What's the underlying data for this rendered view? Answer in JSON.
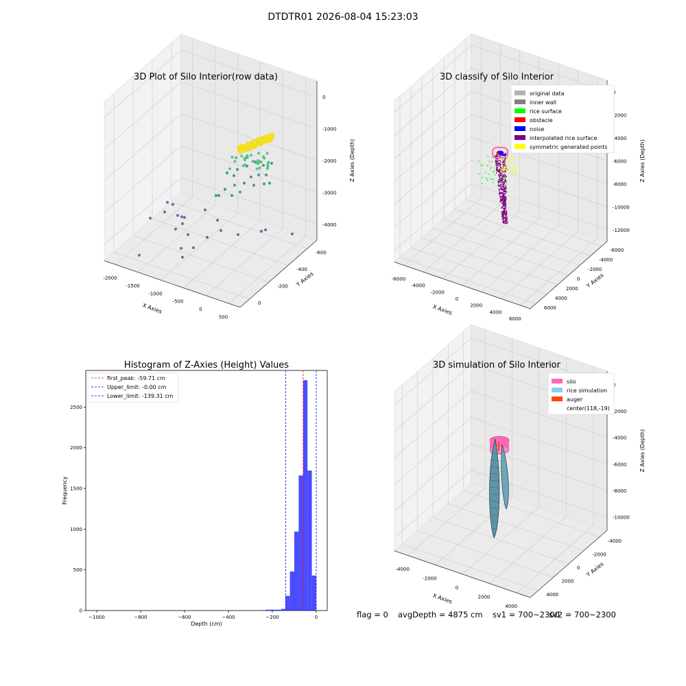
{
  "figure": {
    "suptitle": "DTDTR01 2026-08-04 15:23:03",
    "footer": {
      "flag": "flag = 0",
      "avg_depth": "avgDepth = 4875 cm",
      "sv1": "sv1 = 700~2300",
      "sv2": "sv2 = 700~2300"
    }
  },
  "chart_data": [
    {
      "type": "scatter",
      "projection": "3d",
      "title": "3D Plot of Silo Interior(row data)",
      "xlabel": "X Axies",
      "ylabel": "Y Axies",
      "zlabel": "Z Axies (Depth)",
      "xticks": [
        "-2000",
        "-1500",
        "-1000",
        "-500",
        "0",
        "500"
      ],
      "yticks": [
        "-600",
        "-400",
        "-200",
        "0"
      ],
      "zticks": [
        "-4000",
        "-3000",
        "-2000",
        "-1000",
        "0"
      ],
      "colormap": "viridis (by depth)",
      "grid": true
    },
    {
      "type": "scatter",
      "projection": "3d",
      "title": "3D classify of Silo Interior",
      "xlabel": "X Axies",
      "ylabel": "Y Axies",
      "zlabel": "Z Axies (Depth)",
      "xticks": [
        "-6000",
        "-4000",
        "-2000",
        "0",
        "2000",
        "4000",
        "6000"
      ],
      "yticks": [
        "-6000",
        "-4000",
        "-2000",
        "0",
        "2000",
        "4000",
        "6000"
      ],
      "zticks": [
        "-12000",
        "-10000",
        "-8000",
        "-6000",
        "-4000",
        "-2000",
        "0"
      ],
      "legend_position": "top-right",
      "legend": [
        {
          "label": "original data",
          "color": "#b3b3b3"
        },
        {
          "label": "inner wall",
          "color": "#808080"
        },
        {
          "label": "rice surface",
          "color": "#00ff00"
        },
        {
          "label": "obstacle",
          "color": "#ff0000"
        },
        {
          "label": "noise",
          "color": "#0000ff"
        },
        {
          "label": "interpolated rice surface",
          "color": "#800080"
        },
        {
          "label": "symmetric generated points",
          "color": "#ffff00"
        }
      ],
      "grid": true
    },
    {
      "type": "bar",
      "subtype": "histogram",
      "title": "Histogram of Z-Axies (Height) Values",
      "xlabel": "Depth (cm)",
      "ylabel": "Frequency",
      "xlim": [
        -1050,
        50
      ],
      "ylim": [
        0,
        2950
      ],
      "xticks": [
        -1000,
        -800,
        -600,
        -400,
        -200,
        0
      ],
      "yticks": [
        0,
        500,
        1000,
        1500,
        2000,
        2500
      ],
      "bar_color": "#0000ff",
      "bins": [
        {
          "x0": -260,
          "x1": -230,
          "count": 5
        },
        {
          "x0": -230,
          "x1": -160,
          "count": 10
        },
        {
          "x0": -160,
          "x1": -140,
          "count": 20
        },
        {
          "x0": -140,
          "x1": -120,
          "count": 180
        },
        {
          "x0": -120,
          "x1": -100,
          "count": 480
        },
        {
          "x0": -100,
          "x1": -80,
          "count": 970
        },
        {
          "x0": -80,
          "x1": -60,
          "count": 1660
        },
        {
          "x0": -60,
          "x1": -40,
          "count": 2830
        },
        {
          "x0": -40,
          "x1": -20,
          "count": 1720
        },
        {
          "x0": -20,
          "x1": 0,
          "count": 430
        }
      ],
      "vlines": [
        {
          "label": "first_peak: -59.71 cm",
          "x": -59.71,
          "color": "#ff0000"
        },
        {
          "label": "Upper_limit: -0.00 cm",
          "x": 0,
          "color": "#0000ff"
        },
        {
          "label": "Lower_limit: -139.31 cm",
          "x": -139.31,
          "color": "#0000ff"
        }
      ],
      "legend_position": "top-left",
      "grid": false
    },
    {
      "type": "surface",
      "projection": "3d",
      "title": "3D simulation of Silo Interior",
      "xlabel": "X Axies",
      "ylabel": "Y Axies",
      "zlabel": "Z Axies (Depth)",
      "xticks": [
        "-4000",
        "-2000",
        "0",
        "2000",
        "4000"
      ],
      "yticks": [
        "-4000",
        "-2000",
        "0",
        "2000",
        "4000"
      ],
      "zticks": [
        "-10000",
        "-8000",
        "-6000",
        "-4000",
        "-2000",
        "0"
      ],
      "legend_position": "top-right",
      "legend": [
        {
          "label": "silo",
          "color": "#ff69b4"
        },
        {
          "label": "rice simulation",
          "color": "#87ceeb"
        },
        {
          "label": "auger",
          "color": "#ff4500"
        },
        {
          "label": "center(118,-19)",
          "color": ""
        }
      ],
      "grid": true
    }
  ]
}
